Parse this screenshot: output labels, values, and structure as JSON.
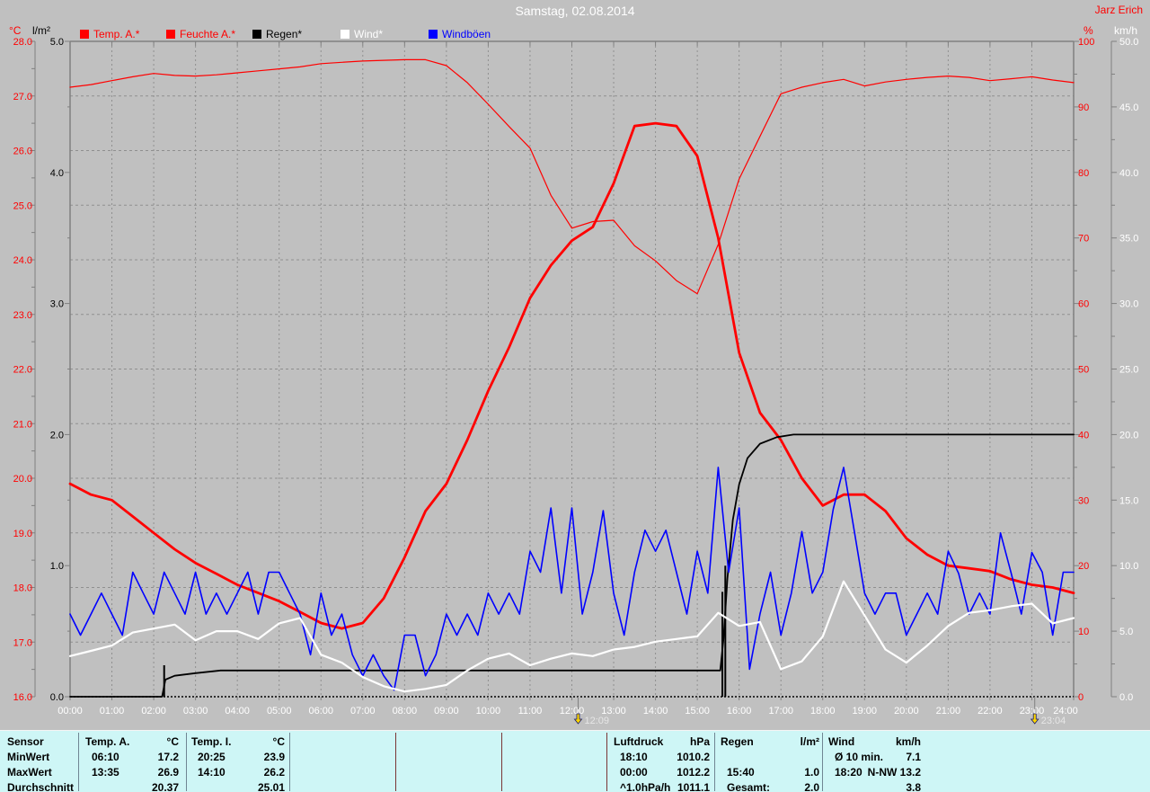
{
  "window": {
    "title": "Samstag, 02.08.2014",
    "watermark": "Jarz Erich",
    "bg_color": "#c0c0c0",
    "title_color": "#ffffff",
    "watermark_color": "#ff0000"
  },
  "colors": {
    "grid": "#8f8f8f",
    "plot_border": "#808080",
    "axis_line": "#808080",
    "x_label": "#ffffff",
    "marker_text": "#e6e6e6",
    "marker_yellow": "#ffd800",
    "marker_dark": "#1a1a66",
    "table_bg": "#cef6f6",
    "divider_gray": "#708693",
    "divider_maroon": "#7a3535"
  },
  "legend": {
    "items": [
      {
        "label": "Temp. A.*",
        "color": "#ff0000",
        "text_color": "#ff0000"
      },
      {
        "label": "Feuchte A.*",
        "color": "#ff0000",
        "text_color": "#ff0000"
      },
      {
        "label": "Regen*",
        "color": "#000000",
        "text_color": "#000000"
      },
      {
        "label": "Wind*",
        "color": "#ffffff",
        "text_color": "#ffffff"
      },
      {
        "label": "Windböen",
        "color": "#0000ff",
        "text_color": "#0000ff"
      }
    ]
  },
  "axes": {
    "temp_left": {
      "unit": "°C",
      "color": "#ff0000",
      "min": 16,
      "max": 28,
      "labels": [
        "28.0",
        "27.0",
        "26.0",
        "25.0",
        "24.0",
        "23.0",
        "22.0",
        "21.0",
        "20.0",
        "19.0",
        "18.0",
        "17.0",
        "16.0"
      ]
    },
    "rain_left": {
      "unit": "l/m²",
      "color": "#000000",
      "min": 0,
      "max": 5,
      "labels": [
        "5.0",
        "4.0",
        "3.0",
        "2.0",
        "1.0",
        "0.0"
      ]
    },
    "humidity_right": {
      "unit": "%",
      "color": "#ff0000",
      "min": 0,
      "max": 100,
      "labels": [
        "100",
        "90",
        "80",
        "70",
        "60",
        "50",
        "40",
        "30",
        "20",
        "10",
        "0"
      ]
    },
    "wind_right": {
      "unit": "km/h",
      "color": "#ffffff",
      "min": 0,
      "max": 50,
      "labels": [
        "50.0",
        "45.0",
        "40.0",
        "35.0",
        "30.0",
        "25.0",
        "20.0",
        "15.0",
        "10.0",
        "5.0",
        "0.0"
      ]
    },
    "x": {
      "labels": [
        "00:00",
        "01:00",
        "02:00",
        "03:00",
        "04:00",
        "05:00",
        "06:00",
        "07:00",
        "08:00",
        "09:00",
        "10:00",
        "11:00",
        "12:00",
        "13:00",
        "14:00",
        "15:00",
        "16:00",
        "17:00",
        "18:00",
        "19:00",
        "20:00",
        "21:00",
        "22:00",
        "23:00",
        "24:00"
      ]
    }
  },
  "markers": [
    {
      "label": "12:09",
      "t": 12.15
    },
    {
      "label": "23:04",
      "t": 23.07
    }
  ],
  "chart_data": {
    "type": "line",
    "title": "Samstag, 02.08.2014",
    "x_range_hours": [
      0,
      24
    ],
    "grid": "dashed, hourly vertical, 1°C horizontal",
    "series": [
      {
        "name": "Temp. A.",
        "axis": "temp_c",
        "color": "#ff0000",
        "width": 2.8,
        "interval_minutes": 30,
        "values": [
          19.9,
          19.7,
          19.6,
          19.3,
          19.0,
          18.7,
          18.45,
          18.25,
          18.05,
          17.9,
          17.75,
          17.55,
          17.35,
          17.25,
          17.35,
          17.8,
          18.55,
          19.4,
          19.9,
          20.7,
          21.6,
          22.4,
          23.3,
          23.9,
          24.35,
          24.6,
          25.4,
          26.45,
          26.5,
          26.45,
          25.9,
          24.4,
          22.3,
          21.2,
          20.7,
          20.0,
          19.5,
          19.7,
          19.7,
          19.4,
          18.9,
          18.6,
          18.4,
          18.35,
          18.3,
          18.15,
          18.05,
          18.0,
          17.9
        ]
      },
      {
        "name": "Feuchte A.",
        "axis": "percent",
        "color": "#ff0000",
        "width": 1.2,
        "interval_minutes": 30,
        "values": [
          93.0,
          93.4,
          94.0,
          94.6,
          95.1,
          94.8,
          94.7,
          94.9,
          95.2,
          95.5,
          95.8,
          96.1,
          96.6,
          96.8,
          97.0,
          97.1,
          97.2,
          97.2,
          96.3,
          93.7,
          90.4,
          87.0,
          83.7,
          76.5,
          71.5,
          72.5,
          72.7,
          68.8,
          66.5,
          63.5,
          61.5,
          69.0,
          79.0,
          85.5,
          92.0,
          93.0,
          93.7,
          94.2,
          93.2,
          93.8,
          94.2,
          94.5,
          94.7,
          94.5,
          94.0,
          94.3,
          94.6,
          94.1,
          93.7
        ]
      },
      {
        "name": "Regen (kumuliert)",
        "axis": "l_m2",
        "color": "#000000",
        "width": 1.8,
        "points": [
          [
            0,
            0
          ],
          [
            2.2,
            0
          ],
          [
            2.28,
            0.13
          ],
          [
            2.5,
            0.16
          ],
          [
            3.0,
            0.18
          ],
          [
            3.6,
            0.2
          ],
          [
            15.55,
            0.2
          ],
          [
            15.63,
            0.45
          ],
          [
            15.72,
            0.9
          ],
          [
            15.85,
            1.35
          ],
          [
            16.0,
            1.62
          ],
          [
            16.2,
            1.82
          ],
          [
            16.5,
            1.93
          ],
          [
            16.9,
            1.98
          ],
          [
            17.3,
            2.0
          ],
          [
            24,
            2.0
          ]
        ]
      },
      {
        "name": "Regen Spitzen",
        "axis": "l_m2",
        "color": "#000000",
        "width": 2,
        "spikes": [
          [
            2.25,
            0.24
          ],
          [
            15.6,
            0.8
          ],
          [
            15.67,
            1.0
          ]
        ]
      },
      {
        "name": "Windböen",
        "axis": "km_h",
        "color": "#0000ff",
        "width": 1.6,
        "interval_minutes": 15,
        "values": [
          6.3,
          4.7,
          6.3,
          7.9,
          6.3,
          4.7,
          9.5,
          7.9,
          6.3,
          9.5,
          7.9,
          6.3,
          9.5,
          6.3,
          7.9,
          6.3,
          7.9,
          9.5,
          6.3,
          9.5,
          9.5,
          7.9,
          6.3,
          3.2,
          7.9,
          4.7,
          6.3,
          3.2,
          1.6,
          3.2,
          1.6,
          0.5,
          4.7,
          4.7,
          1.6,
          3.2,
          6.3,
          4.7,
          6.3,
          4.7,
          7.9,
          6.3,
          7.9,
          6.3,
          11.1,
          9.5,
          14.4,
          7.9,
          14.4,
          6.3,
          9.5,
          14.2,
          7.9,
          4.7,
          9.5,
          12.7,
          11.1,
          12.7,
          9.5,
          6.3,
          11.1,
          7.9,
          17.5,
          9.5,
          14.4,
          2.1,
          6.3,
          9.5,
          4.7,
          7.9,
          12.6,
          7.9,
          9.5,
          14.3,
          17.5,
          12.7,
          7.9,
          6.3,
          7.9,
          7.9,
          4.7,
          6.3,
          7.9,
          6.3,
          11.1,
          9.4,
          6.3,
          7.9,
          6.3,
          12.5,
          9.5,
          6.3,
          11.0,
          9.5,
          4.7,
          9.5,
          9.5
        ]
      },
      {
        "name": "Wind",
        "axis": "km_h",
        "color": "#ffffff",
        "width": 2.2,
        "interval_minutes": 30,
        "values": [
          3.1,
          3.5,
          3.9,
          4.9,
          5.2,
          5.5,
          4.3,
          5.0,
          5.0,
          4.4,
          5.6,
          6.0,
          3.2,
          2.6,
          1.5,
          0.8,
          0.4,
          0.6,
          0.9,
          2.0,
          2.9,
          3.3,
          2.4,
          2.9,
          3.3,
          3.1,
          3.6,
          3.8,
          4.2,
          4.4,
          4.6,
          6.4,
          5.4,
          5.7,
          2.1,
          2.7,
          4.6,
          8.8,
          6.2,
          3.6,
          2.6,
          3.9,
          5.4,
          6.4,
          6.6,
          6.9,
          7.1,
          5.6,
          6.0
        ]
      }
    ]
  },
  "stats_table": {
    "row_labels": [
      "Sensor",
      "MinWert",
      "MaxWert",
      "Durchschnitt"
    ],
    "columns": [
      {
        "name": "Temp. A.",
        "unit": "°C",
        "rows": [
          [
            "06:10",
            "17.2"
          ],
          [
            "13:35",
            "26.9"
          ],
          [
            "",
            "20.37"
          ]
        ]
      },
      {
        "name": "Temp. I.",
        "unit": "°C",
        "rows": [
          [
            "20:25",
            "23.9"
          ],
          [
            "14:10",
            "26.2"
          ],
          [
            "",
            "25.01"
          ]
        ]
      },
      {
        "name": "",
        "unit": "",
        "rows": [
          [
            "",
            ""
          ],
          [
            "",
            ""
          ],
          [
            "",
            ""
          ]
        ]
      },
      {
        "name": "",
        "unit": "",
        "rows": [
          [
            "",
            ""
          ],
          [
            "",
            ""
          ],
          [
            "",
            ""
          ]
        ]
      },
      {
        "name": "",
        "unit": "",
        "rows": [
          [
            "",
            ""
          ],
          [
            "",
            ""
          ],
          [
            "",
            ""
          ]
        ]
      },
      {
        "name": "Luftdruck",
        "unit": "hPa",
        "rows": [
          [
            "18:10",
            "1010.2"
          ],
          [
            "00:00",
            "1012.2"
          ],
          [
            "^1.0hPa/h",
            "1011.1"
          ]
        ]
      },
      {
        "name": "Regen",
        "unit": "l/m²",
        "rows": [
          [
            "",
            ""
          ],
          [
            "15:40",
            "1.0"
          ],
          [
            "Gesamt:",
            "2.0"
          ]
        ]
      },
      {
        "name": "Wind",
        "unit": "km/h",
        "rows": [
          [
            "Ø 10 min.",
            "7.1"
          ],
          [
            "18:20",
            "N-NW 13.2"
          ],
          [
            "",
            "3.8"
          ]
        ]
      }
    ]
  }
}
